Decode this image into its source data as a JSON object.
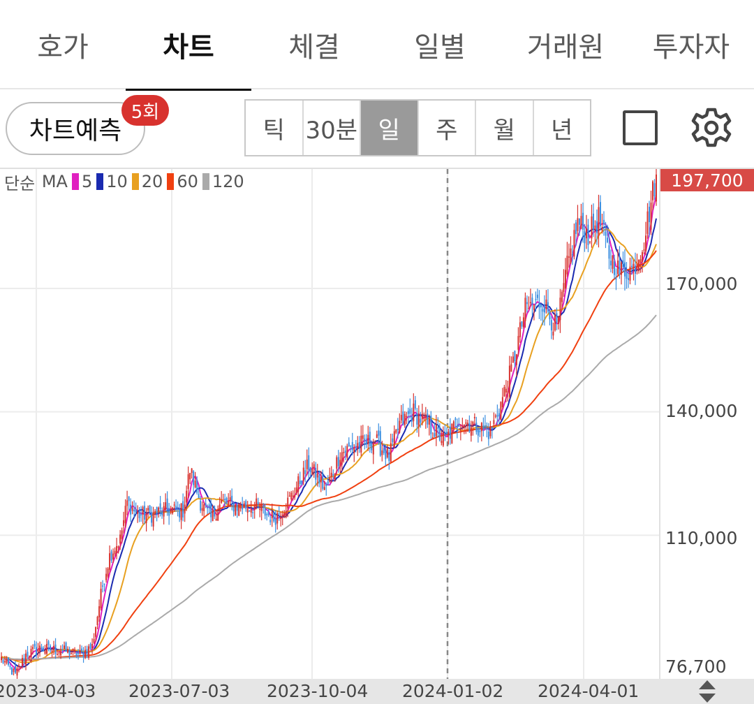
{
  "tabs": [
    {
      "label": "호가",
      "active": false
    },
    {
      "label": "차트",
      "active": true
    },
    {
      "label": "체결",
      "active": false
    },
    {
      "label": "일별",
      "active": false
    },
    {
      "label": "거래원",
      "active": false
    },
    {
      "label": "투자자",
      "active": false
    }
  ],
  "toolbar": {
    "predict_label": "차트예측",
    "predict_badge": "5회",
    "periods": [
      "틱",
      "30분",
      "일",
      "주",
      "월",
      "년"
    ],
    "selected_period": "일",
    "square_icon": "square-icon",
    "gear_icon": "gear-icon"
  },
  "legend": {
    "prefix": "단순",
    "ma_label": "MA",
    "items": [
      {
        "label": "5",
        "color": "#e020c0"
      },
      {
        "label": "10",
        "color": "#1a2ab0"
      },
      {
        "label": "20",
        "color": "#e8a020"
      },
      {
        "label": "60",
        "color": "#f04010"
      },
      {
        "label": "120",
        "color": "#aaaaaa"
      }
    ]
  },
  "current_price": "197,700",
  "colors": {
    "up": "#d8322e",
    "down": "#3a8ee0",
    "price_tag": "#d84a46"
  },
  "chart_data": {
    "type": "candlestick",
    "y_tick_labels": [
      "170,000",
      "140,000",
      "110,000",
      "76,700"
    ],
    "y_ticks": [
      170000,
      140000,
      110000,
      76700
    ],
    "ylim": [
      76700,
      206000
    ],
    "x_tick_labels": [
      "2023-04-03",
      "2023-07-03",
      "2023-10-04",
      "2024-01-02",
      "2024-04-01"
    ],
    "current_price": 197700,
    "vertical_marker": "2024-01-02",
    "ma_periods": [
      5,
      10,
      20,
      60,
      120
    ],
    "close_anchors": [
      [
        0,
        80000
      ],
      [
        8,
        76000
      ],
      [
        14,
        81000
      ],
      [
        22,
        82500
      ],
      [
        34,
        82000
      ],
      [
        45,
        81000
      ],
      [
        52,
        83000
      ],
      [
        58,
        98000
      ],
      [
        62,
        105000
      ],
      [
        68,
        109000
      ],
      [
        72,
        118000
      ],
      [
        78,
        115000
      ],
      [
        86,
        115000
      ],
      [
        94,
        116000
      ],
      [
        104,
        116000
      ],
      [
        108,
        126000
      ],
      [
        114,
        118000
      ],
      [
        120,
        114000
      ],
      [
        126,
        118000
      ],
      [
        136,
        117000
      ],
      [
        146,
        117000
      ],
      [
        156,
        114000
      ],
      [
        164,
        118000
      ],
      [
        176,
        127000
      ],
      [
        186,
        121000
      ],
      [
        194,
        130000
      ],
      [
        204,
        132000
      ],
      [
        214,
        133000
      ],
      [
        222,
        129000
      ],
      [
        228,
        137000
      ],
      [
        236,
        140000
      ],
      [
        246,
        136000
      ],
      [
        254,
        133000
      ],
      [
        262,
        138000
      ],
      [
        270,
        137000
      ],
      [
        280,
        135000
      ],
      [
        286,
        142000
      ],
      [
        292,
        150000
      ],
      [
        300,
        165000
      ],
      [
        310,
        167000
      ],
      [
        318,
        160000
      ],
      [
        324,
        175000
      ],
      [
        330,
        186000
      ],
      [
        336,
        183000
      ],
      [
        342,
        187000
      ],
      [
        348,
        178000
      ],
      [
        354,
        174000
      ],
      [
        362,
        175000
      ],
      [
        368,
        182000
      ],
      [
        375,
        197700
      ]
    ]
  }
}
